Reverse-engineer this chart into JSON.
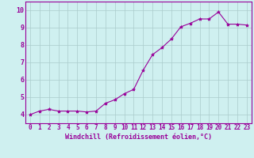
{
  "x": [
    0,
    1,
    2,
    3,
    4,
    5,
    6,
    7,
    8,
    9,
    10,
    11,
    12,
    13,
    14,
    15,
    16,
    17,
    18,
    19,
    20,
    21,
    22,
    23
  ],
  "y": [
    4.0,
    4.2,
    4.3,
    4.2,
    4.2,
    4.2,
    4.15,
    4.2,
    4.65,
    4.85,
    5.2,
    5.45,
    6.55,
    7.45,
    7.85,
    8.35,
    9.05,
    9.25,
    9.5,
    9.5,
    9.9,
    9.2,
    9.2,
    9.15
  ],
  "line_color": "#990099",
  "marker": "*",
  "marker_size": 3,
  "background_color": "#cff0f0",
  "grid_color": "#aacccc",
  "xlabel": "Windchill (Refroidissement éolien,°C)",
  "xlabel_color": "#990099",
  "tick_color": "#990099",
  "xlim": [
    -0.5,
    23.5
  ],
  "ylim": [
    3.5,
    10.5
  ],
  "yticks": [
    4,
    5,
    6,
    7,
    8,
    9,
    10
  ],
  "xticks": [
    0,
    1,
    2,
    3,
    4,
    5,
    6,
    7,
    8,
    9,
    10,
    11,
    12,
    13,
    14,
    15,
    16,
    17,
    18,
    19,
    20,
    21,
    22,
    23
  ],
  "title_fontsize": 6,
  "tick_fontsize": 5.5,
  "xlabel_fontsize": 6
}
